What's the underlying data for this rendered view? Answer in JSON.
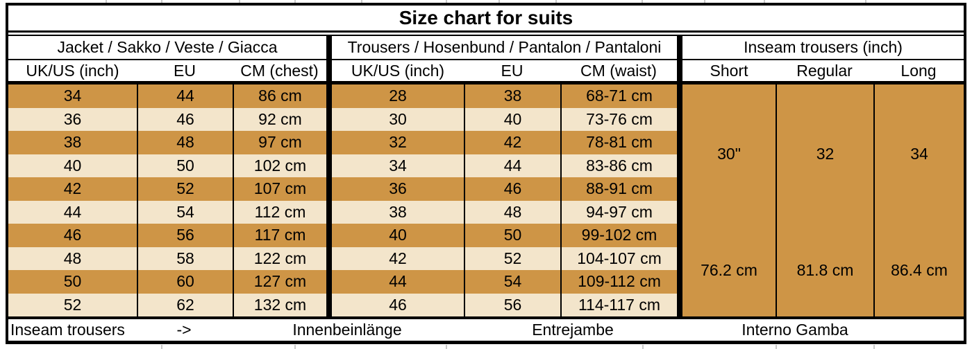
{
  "colors": {
    "row_orange": "#CE9546",
    "row_cream": "#F3E5CB",
    "table_border": "#000000",
    "remnant_gridline": "#C8C8C8"
  },
  "chart_data": {
    "type": "table",
    "title": "Size chart for suits",
    "sections": [
      {
        "header": "Jacket / Sakko / Veste / Giacca",
        "columns": [
          "UK/US (inch)",
          "EU",
          "CM (chest)"
        ],
        "rows": [
          [
            "34",
            "44",
            "86 cm"
          ],
          [
            "36",
            "46",
            "92 cm"
          ],
          [
            "38",
            "48",
            "97 cm"
          ],
          [
            "40",
            "50",
            "102 cm"
          ],
          [
            "42",
            "52",
            "107 cm"
          ],
          [
            "44",
            "54",
            "112 cm"
          ],
          [
            "46",
            "56",
            "117 cm"
          ],
          [
            "48",
            "58",
            "122 cm"
          ],
          [
            "50",
            "60",
            "127 cm"
          ],
          [
            "52",
            "62",
            "132 cm"
          ]
        ]
      },
      {
        "header": "Trousers / Hosenbund / Pantalon / Pantaloni",
        "columns": [
          "UK/US (inch)",
          "EU",
          "CM (waist)"
        ],
        "rows": [
          [
            "28",
            "38",
            "68-71 cm"
          ],
          [
            "30",
            "40",
            "73-76 cm"
          ],
          [
            "32",
            "42",
            "78-81 cm"
          ],
          [
            "34",
            "44",
            "83-86 cm"
          ],
          [
            "36",
            "46",
            "88-91 cm"
          ],
          [
            "38",
            "48",
            "94-97 cm"
          ],
          [
            "40",
            "50",
            "99-102 cm"
          ],
          [
            "42",
            "52",
            "104-107 cm"
          ],
          [
            "44",
            "54",
            "109-112 cm"
          ],
          [
            "46",
            "56",
            "114-117 cm"
          ]
        ]
      },
      {
        "header": "Inseam trousers (inch)",
        "columns": [
          "Short",
          "Regular",
          "Long"
        ],
        "inch_row": [
          "30\"",
          "32",
          "34"
        ],
        "cm_row": [
          "76.2 cm",
          "81.8 cm",
          "86.4 cm"
        ]
      }
    ],
    "footer": {
      "labels": [
        "Inseam trousers",
        "->",
        "Innenbeinlänge",
        "Entrejambe",
        "Interno Gamba"
      ]
    }
  }
}
